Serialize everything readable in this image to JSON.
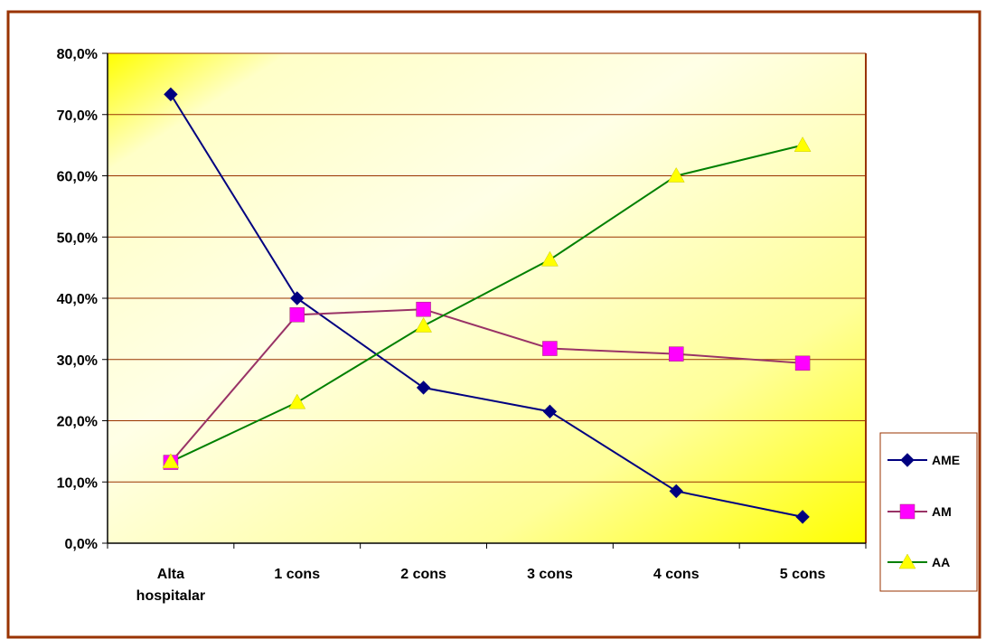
{
  "chart_data": {
    "type": "line",
    "categories": [
      [
        "Alta",
        "hospitalar"
      ],
      [
        "1 cons"
      ],
      [
        "2 cons"
      ],
      [
        "3 cons"
      ],
      [
        "4 cons"
      ],
      [
        "5 cons"
      ]
    ],
    "yticks": [
      "0,0%",
      "10,0%",
      "20,0%",
      "30,0%",
      "40,0%",
      "50,0%",
      "60,0%",
      "70,0%",
      "80,0%"
    ],
    "ylim": [
      0,
      80
    ],
    "series": [
      {
        "name": "AME",
        "values": [
          73.3,
          40.0,
          25.4,
          21.5,
          8.5,
          4.3
        ],
        "color": "#000080",
        "marker": "diamond"
      },
      {
        "name": "AM",
        "values": [
          13.2,
          37.3,
          38.2,
          31.8,
          30.9,
          29.4
        ],
        "color": "#993366",
        "marker_color": "#ff00ff",
        "marker": "square"
      },
      {
        "name": "AA",
        "values": [
          13.3,
          23.0,
          35.5,
          46.3,
          60.0,
          65.0
        ],
        "color": "#008000",
        "marker_color": "#ffff00",
        "marker": "triangle"
      }
    ],
    "grid": true,
    "legend": "right",
    "colors": {
      "frame": "#993300",
      "gridline": "#993300",
      "plot_bg_light": "#ffffff",
      "plot_bg_dark": "#ffff00"
    }
  }
}
